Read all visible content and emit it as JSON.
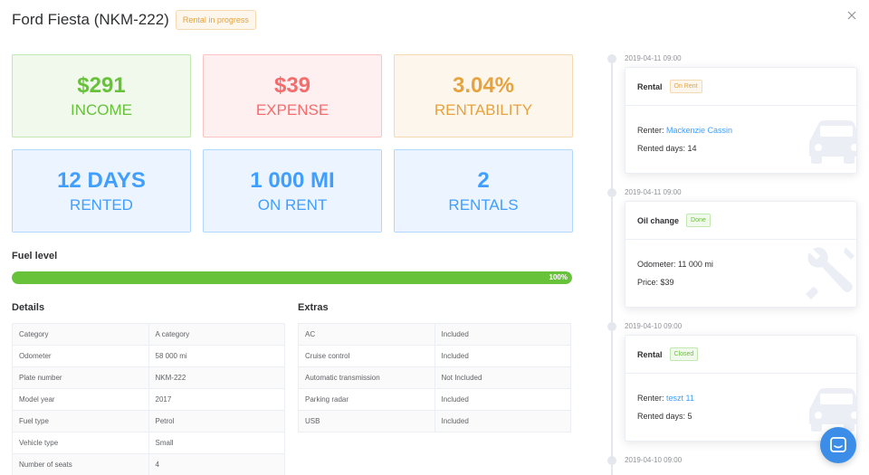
{
  "header": {
    "title": "Ford Fiesta (NKM-222)",
    "status": "Rental in progress",
    "close_icon": "close-icon"
  },
  "stats": [
    {
      "value": "$291",
      "label": "INCOME",
      "color": "#67c23a"
    },
    {
      "value": "$39",
      "label": "EXPENSE",
      "color": "#f56c6c"
    },
    {
      "value": "3.04%",
      "label": "RENTABILITY",
      "color": "#e6a23c"
    },
    {
      "value": "12 DAYS",
      "label": "RENTED",
      "color": "#409eff"
    },
    {
      "value": "1 000 MI",
      "label": "ON RENT",
      "color": "#409eff"
    },
    {
      "value": "2",
      "label": "RENTALS",
      "color": "#409eff"
    }
  ],
  "fuel": {
    "title": "Fuel level",
    "percent": 100,
    "percent_label": "100%"
  },
  "details": {
    "title": "Details",
    "rows": [
      {
        "label": "Category",
        "value": "A category"
      },
      {
        "label": "Odometer",
        "value": "58 000 mi"
      },
      {
        "label": "Plate number",
        "value": "NKM-222"
      },
      {
        "label": "Model year",
        "value": "2017"
      },
      {
        "label": "Fuel type",
        "value": "Petrol"
      },
      {
        "label": "Vehicle type",
        "value": "Small"
      },
      {
        "label": "Number of seats",
        "value": "4"
      }
    ]
  },
  "extras": {
    "title": "Extras",
    "rows": [
      {
        "label": "AC",
        "value": "Included"
      },
      {
        "label": "Cruise control",
        "value": "Included"
      },
      {
        "label": "Automatic transmission",
        "value": "Not Included"
      },
      {
        "label": "Parking radar",
        "value": "Included"
      },
      {
        "label": "USB",
        "value": "Included"
      }
    ]
  },
  "timeline": [
    {
      "time": "2019-04-11 09:00",
      "title": "Rental",
      "tag": "On Rent",
      "line1_label": "Renter:",
      "line1_link": "Mackenzie Cassin",
      "line2": "Rented days: 14",
      "icon": "car-icon"
    },
    {
      "time": "2019-04-11 09:00",
      "title": "Oil change",
      "tag": "Done",
      "line1_label": "Odometer: 11 000 mi",
      "line2": "Price: $39",
      "icon": "tools-icon"
    },
    {
      "time": "2019-04-10 09:00",
      "title": "Rental",
      "tag": "Closed",
      "line1_label": "Renter:",
      "line1_link": "teszt 11",
      "line2": "Rented days: 5",
      "icon": "car-icon"
    },
    {
      "time": "2019-04-10 09:00"
    }
  ],
  "chat": {
    "icon": "chat-icon"
  }
}
